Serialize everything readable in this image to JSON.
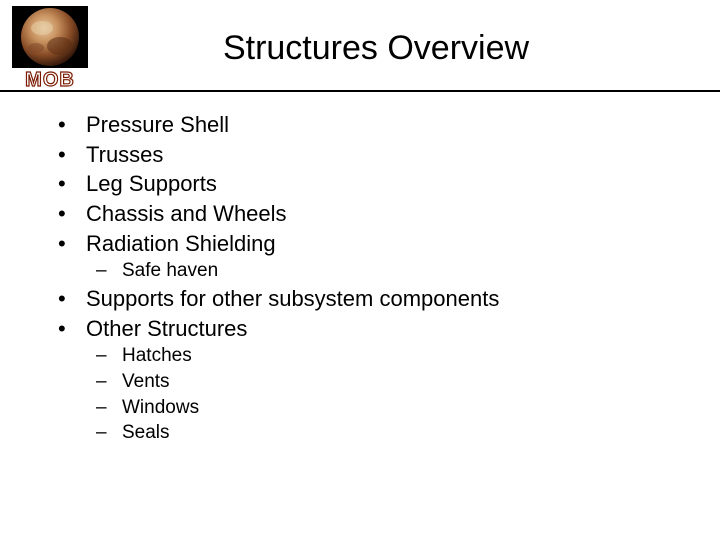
{
  "logo": {
    "text": "MOB",
    "fill_color": "#ffffff",
    "stroke_color": "#7a1a00",
    "mars_colors": {
      "bg": "#000000",
      "light": "#d8b48a",
      "mid": "#b07a4a",
      "dark": "#6e3a1e",
      "shadow": "#2a1408"
    }
  },
  "title": "Structures Overview",
  "bullets": [
    {
      "text": "Pressure Shell"
    },
    {
      "text": "Trusses"
    },
    {
      "text": "Leg Supports"
    },
    {
      "text": "Chassis and Wheels"
    },
    {
      "text": "Radiation Shielding",
      "sub": [
        {
          "text": "Safe haven"
        }
      ]
    },
    {
      "text": "Supports for other subsystem components"
    },
    {
      "text": "Other Structures",
      "sub": [
        {
          "text": "Hatches"
        },
        {
          "text": "Vents"
        },
        {
          "text": "Windows"
        },
        {
          "text": "Seals"
        }
      ]
    }
  ]
}
